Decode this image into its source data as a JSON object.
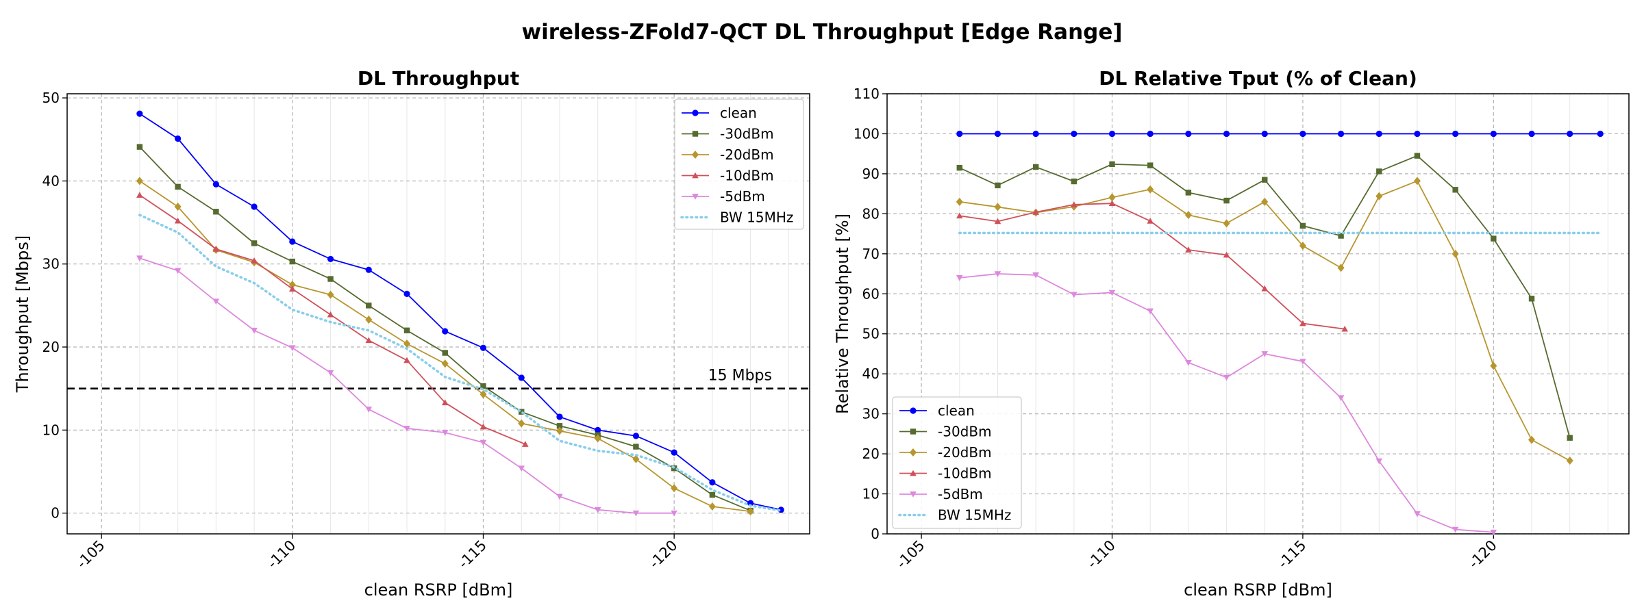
{
  "figure": {
    "title": "wireless-ZFold7-QCT DL Throughput [Edge Range]"
  },
  "colors": {
    "clean": "#0000ff",
    "m30": "#556b2f",
    "m20": "#b8962e",
    "m10": "#d0505a",
    "m5": "#dd88dd",
    "bw": "#87ceeb"
  },
  "chart_data": [
    {
      "type": "line",
      "title": "DL Throughput",
      "xlabel": "clean RSRP [dBm]",
      "ylabel": "Throughput [Mbps]",
      "xlim": [
        -104.1,
        -123.55
      ],
      "ylim": [
        -2.5,
        50.5
      ],
      "x_ticks": [
        -105,
        -110,
        -115,
        -120
      ],
      "x_tick_labels": [
        "-105",
        "-110",
        "-115",
        "-120"
      ],
      "y_ticks": [
        0,
        10,
        20,
        30,
        40,
        50
      ],
      "y_tick_labels": [
        "0",
        "10",
        "20",
        "30",
        "40",
        "50"
      ],
      "grid": true,
      "legend_position": "upper right",
      "reference_line": {
        "y": 15,
        "label": "15 Mbps",
        "style": "dashed",
        "color": "#000000"
      },
      "series": [
        {
          "name": "clean",
          "color_key": "clean",
          "marker": "circle",
          "style": "solid",
          "x": [
            -106,
            -107,
            -108,
            -109,
            -110,
            -111,
            -112,
            -113,
            -114,
            -115,
            -116,
            -117,
            -118,
            -119,
            -120,
            -121,
            -122,
            -122.8
          ],
          "y": [
            48.1,
            45.1,
            39.6,
            36.9,
            32.7,
            30.6,
            29.3,
            26.4,
            21.9,
            19.9,
            16.3,
            11.6,
            10.0,
            9.3,
            7.3,
            3.7,
            1.2,
            0.4
          ]
        },
        {
          "name": "-30dBm",
          "color_key": "m30",
          "marker": "square",
          "style": "solid",
          "x": [
            -106,
            -107,
            -108,
            -109,
            -110,
            -111,
            -112,
            -113,
            -114,
            -115,
            -116,
            -117,
            -118,
            -119,
            -120,
            -121,
            -122
          ],
          "y": [
            44.1,
            39.3,
            36.3,
            32.5,
            30.3,
            28.2,
            25.0,
            22.0,
            19.3,
            15.3,
            12.2,
            10.5,
            9.4,
            8.0,
            5.4,
            2.2,
            0.3
          ]
        },
        {
          "name": "-20dBm",
          "color_key": "m20",
          "marker": "diamond",
          "style": "solid",
          "x": [
            -106,
            -107,
            -108,
            -109,
            -110,
            -111,
            -112,
            -113,
            -114,
            -115,
            -116,
            -117,
            -118,
            -119,
            -120,
            -121,
            -122
          ],
          "y": [
            40.0,
            36.9,
            31.7,
            30.2,
            27.5,
            26.3,
            23.3,
            20.4,
            18.0,
            14.3,
            10.8,
            9.9,
            9.0,
            6.5,
            3.0,
            0.8,
            0.2
          ]
        },
        {
          "name": "-10dBm",
          "color_key": "m10",
          "marker": "triangle-up",
          "style": "solid",
          "x": [
            -106,
            -107,
            -108,
            -109,
            -110,
            -111,
            -112,
            -113,
            -114,
            -115,
            -116.1
          ],
          "y": [
            38.3,
            35.2,
            31.8,
            30.4,
            27.0,
            23.9,
            20.8,
            18.4,
            13.3,
            10.4,
            8.3
          ]
        },
        {
          "name": "-5dBm",
          "color_key": "m5",
          "marker": "triangle-down",
          "style": "solid",
          "x": [
            -106,
            -107,
            -108,
            -109,
            -110,
            -111,
            -112,
            -113,
            -114,
            -115,
            -116,
            -117,
            -118,
            -119,
            -120
          ],
          "y": [
            30.7,
            29.2,
            25.5,
            22.0,
            19.9,
            16.9,
            12.5,
            10.2,
            9.7,
            8.5,
            5.4,
            2.0,
            0.4,
            0.0,
            0.0
          ]
        },
        {
          "name": "BW 15MHz",
          "color_key": "bw",
          "marker": "none",
          "style": "dotted",
          "x": [
            -106,
            -107,
            -108,
            -109,
            -110,
            -111,
            -112,
            -113,
            -114,
            -115,
            -116,
            -117,
            -118,
            -119,
            -120,
            -121,
            -122,
            -122.8
          ],
          "y": [
            35.9,
            33.8,
            29.7,
            27.7,
            24.5,
            23.0,
            22.0,
            19.8,
            16.4,
            14.9,
            12.2,
            8.7,
            7.5,
            7.0,
            5.5,
            2.8,
            0.9,
            0.3
          ]
        }
      ]
    },
    {
      "type": "line",
      "title": "DL Relative Tput (% of Clean)",
      "xlabel": "clean RSRP [dBm]",
      "ylabel": "Relative Throughput [%]",
      "xlim": [
        -104.1,
        -123.55
      ],
      "ylim": [
        0,
        110
      ],
      "x_ticks": [
        -105,
        -110,
        -115,
        -120
      ],
      "x_tick_labels": [
        "-105",
        "-110",
        "-115",
        "-120"
      ],
      "y_ticks": [
        0,
        10,
        20,
        30,
        40,
        50,
        60,
        70,
        80,
        90,
        100,
        110
      ],
      "y_tick_labels": [
        "0",
        "10",
        "20",
        "30",
        "40",
        "50",
        "60",
        "70",
        "80",
        "90",
        "100",
        "110"
      ],
      "grid": true,
      "legend_position": "lower left",
      "series": [
        {
          "name": "clean",
          "color_key": "clean",
          "marker": "circle",
          "style": "solid",
          "x": [
            -106,
            -107,
            -108,
            -109,
            -110,
            -111,
            -112,
            -113,
            -114,
            -115,
            -116,
            -117,
            -118,
            -119,
            -120,
            -121,
            -122,
            -122.8
          ],
          "y": [
            100,
            100,
            100,
            100,
            100,
            100,
            100,
            100,
            100,
            100,
            100,
            100,
            100,
            100,
            100,
            100,
            100,
            100
          ]
        },
        {
          "name": "-30dBm",
          "color_key": "m30",
          "marker": "square",
          "style": "solid",
          "x": [
            -106,
            -107,
            -108,
            -109,
            -110,
            -111,
            -112,
            -113,
            -114,
            -115,
            -116,
            -117,
            -118,
            -119,
            -120,
            -121,
            -122
          ],
          "y": [
            91.5,
            87.1,
            91.7,
            88.1,
            92.4,
            92.1,
            85.3,
            83.3,
            88.5,
            77.0,
            74.5,
            90.6,
            94.5,
            86.0,
            73.8,
            58.8,
            24.0
          ]
        },
        {
          "name": "-20dBm",
          "color_key": "m20",
          "marker": "diamond",
          "style": "solid",
          "x": [
            -106,
            -107,
            -108,
            -109,
            -110,
            -111,
            -112,
            -113,
            -114,
            -115,
            -116,
            -117,
            -118,
            -119,
            -120,
            -121,
            -122
          ],
          "y": [
            83.0,
            81.7,
            80.3,
            81.8,
            84.1,
            86.1,
            79.7,
            77.6,
            83.0,
            72.0,
            66.5,
            84.4,
            88.2,
            70.0,
            42.0,
            23.5,
            18.3
          ]
        },
        {
          "name": "-10dBm",
          "color_key": "m10",
          "marker": "triangle-up",
          "style": "solid",
          "x": [
            -106,
            -107,
            -108,
            -109,
            -110,
            -111,
            -112,
            -113,
            -114,
            -115,
            -116.1
          ],
          "y": [
            79.5,
            78.1,
            80.4,
            82.3,
            82.6,
            78.2,
            71.0,
            69.7,
            61.3,
            52.6,
            51.2
          ]
        },
        {
          "name": "-5dBm",
          "color_key": "m5",
          "marker": "triangle-down",
          "style": "solid",
          "x": [
            -106,
            -107,
            -108,
            -109,
            -110,
            -111,
            -112,
            -113,
            -114,
            -115,
            -116,
            -117,
            -118,
            -119,
            -120
          ],
          "y": [
            64.0,
            65.0,
            64.7,
            59.8,
            60.3,
            55.7,
            42.8,
            39.1,
            45.0,
            43.1,
            34.0,
            18.2,
            5.0,
            1.1,
            0.4
          ]
        },
        {
          "name": "BW 15MHz",
          "color_key": "bw",
          "marker": "none",
          "style": "dotted",
          "x": [
            -106,
            -122.8
          ],
          "y": [
            75.2,
            75.2
          ]
        }
      ]
    }
  ]
}
